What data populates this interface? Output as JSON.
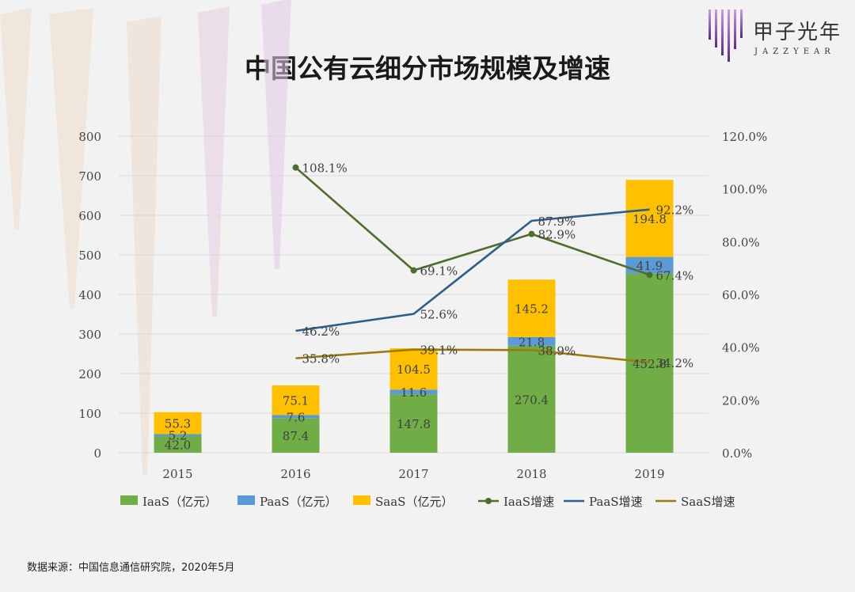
{
  "title": "中国公有云细分市场规模及增速",
  "logo": {
    "cn": "甲子光年",
    "en": "JAZZYEAR"
  },
  "source": "数据来源：中国信息通信研究院，2020年5月",
  "colors": {
    "iaas": "#70ad47",
    "paas": "#5b9bd5",
    "saas": "#ffc000",
    "iaas_growth": "#4e6e2e",
    "paas_growth": "#2e5f8a",
    "saas_growth": "#9b7a10"
  },
  "chart_data": {
    "type": "bar",
    "stacked": true,
    "categories": [
      "2015",
      "2016",
      "2017",
      "2018",
      "2019"
    ],
    "y_left": {
      "ylim": [
        0,
        800
      ],
      "ticks": [
        "0",
        "100",
        "200",
        "300",
        "400",
        "500",
        "600",
        "700",
        "800"
      ]
    },
    "y_right": {
      "ylim": [
        0,
        120
      ],
      "ticks": [
        "0.0%",
        "20.0%",
        "40.0%",
        "60.0%",
        "80.0%",
        "100.0%",
        "120.0%"
      ]
    },
    "series": [
      {
        "name": "IaaS（亿元）",
        "kind": "bar",
        "values": [
          42.0,
          87.4,
          147.8,
          270.4,
          452.8
        ],
        "labels": [
          "42.0",
          "87.4",
          "147.8",
          "270.4",
          "452.8"
        ]
      },
      {
        "name": "PaaS（亿元）",
        "kind": "bar",
        "values": [
          5.2,
          7.6,
          11.6,
          21.8,
          41.9
        ],
        "labels": [
          "5.2",
          "7.6",
          "11.6",
          "21.8",
          "41.9"
        ]
      },
      {
        "name": "SaaS（亿元）",
        "kind": "bar",
        "values": [
          55.3,
          75.1,
          104.5,
          145.2,
          194.8
        ],
        "labels": [
          "55.3",
          "75.1",
          "104.5",
          "145.2",
          "194.8"
        ]
      },
      {
        "name": "IaaS增速",
        "kind": "line",
        "axis": "right",
        "values": [
          null,
          108.1,
          69.1,
          82.9,
          67.4
        ],
        "labels": [
          "",
          "108.1%",
          "69.1%",
          "82.9%",
          "67.4%"
        ]
      },
      {
        "name": "PaaS增速",
        "kind": "line",
        "axis": "right",
        "values": [
          null,
          46.2,
          52.6,
          87.9,
          92.2
        ],
        "labels": [
          "",
          "46.2%",
          "52.6%",
          "87.9%",
          "92.2%"
        ]
      },
      {
        "name": "SaaS增速",
        "kind": "line",
        "axis": "right",
        "values": [
          null,
          35.8,
          39.1,
          38.9,
          34.2
        ],
        "labels": [
          "",
          "35.8%",
          "39.1%",
          "38.9%",
          "34.2%"
        ]
      }
    ],
    "grid": true,
    "legend_position": "bottom"
  }
}
